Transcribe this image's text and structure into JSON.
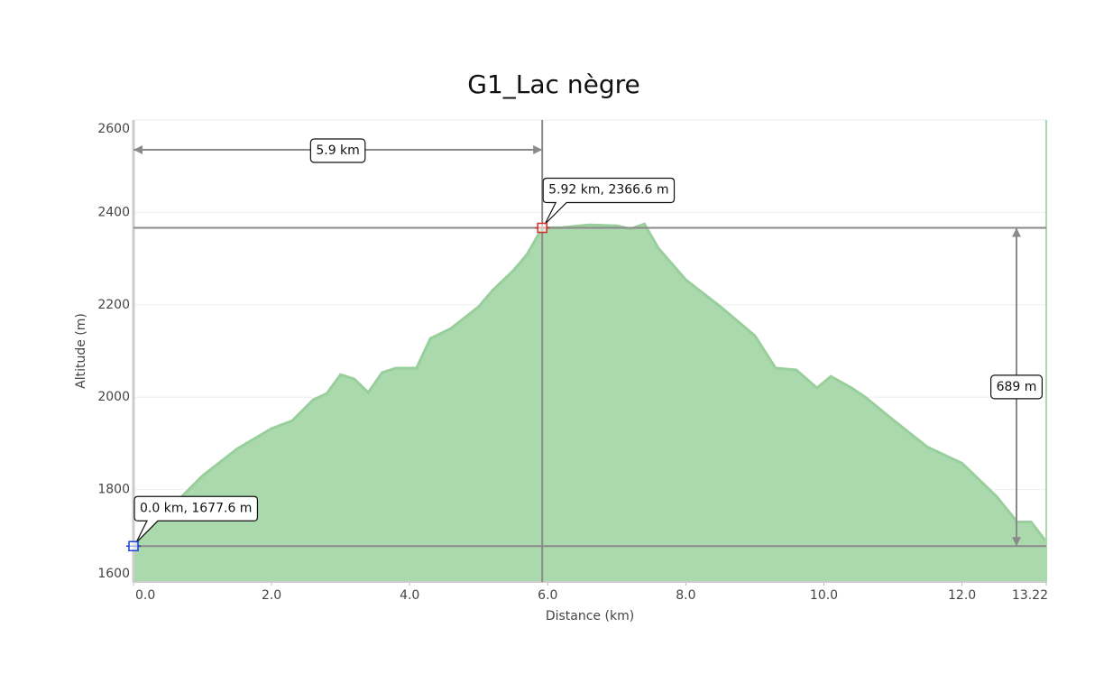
{
  "chart_data": {
    "type": "area",
    "title": "G1_Lac nègre",
    "x_label": "Distance   (km)",
    "y_label": "Altitude (m)",
    "x": [
      0.0,
      0.3,
      0.7,
      1.0,
      1.5,
      2.0,
      2.3,
      2.6,
      2.8,
      3.0,
      3.2,
      3.4,
      3.6,
      3.8,
      4.1,
      4.3,
      4.6,
      5.0,
      5.2,
      5.5,
      5.7,
      5.92,
      6.2,
      6.6,
      7.0,
      7.2,
      7.4,
      7.6,
      8.0,
      8.5,
      9.0,
      9.3,
      9.6,
      9.9,
      10.1,
      10.4,
      10.6,
      11.0,
      11.5,
      12.0,
      12.5,
      12.8,
      13.0,
      13.22
    ],
    "values": [
      1677.6,
      1726,
      1785,
      1830,
      1888,
      1932,
      1949,
      1994,
      2008,
      2049,
      2039,
      2010,
      2053,
      2063,
      2063,
      2127,
      2149,
      2196,
      2231,
      2274,
      2309,
      2366.6,
      2367,
      2373,
      2371,
      2364,
      2375,
      2323,
      2254,
      2196,
      2133,
      2063,
      2059,
      2020,
      2045,
      2020,
      2000,
      1951,
      1892,
      1857,
      1785,
      1730,
      1730,
      1687
    ],
    "color": "#a9d9ad",
    "line_color": "#98cf9c",
    "xlim": [
      0,
      13.22
    ],
    "ylim": [
      1600,
      2600
    ],
    "xticks": [
      {
        "value": 0,
        "label": "0.0"
      },
      {
        "value": 2,
        "label": "2.0"
      },
      {
        "value": 4,
        "label": "4.0"
      },
      {
        "value": 6,
        "label": "6.0"
      },
      {
        "value": 8,
        "label": "8.0"
      },
      {
        "value": 10,
        "label": "10.0"
      },
      {
        "value": 12,
        "label": "12.0"
      },
      13.22
    ],
    "yticks": [
      1600,
      1800,
      2000,
      2200,
      2400,
      2600
    ],
    "grid": true,
    "markers": [
      {
        "x": 5.92,
        "y": 2366.6,
        "label": "5.92 km, 2366.6 m",
        "color": "#d62b2b"
      },
      {
        "x": 0.0,
        "y": 1677.6,
        "label": "0.0 km, 1677.6 m",
        "color": "#1f3fd6"
      }
    ],
    "distance_label": "5.9 km",
    "climb_label": "689 m"
  }
}
